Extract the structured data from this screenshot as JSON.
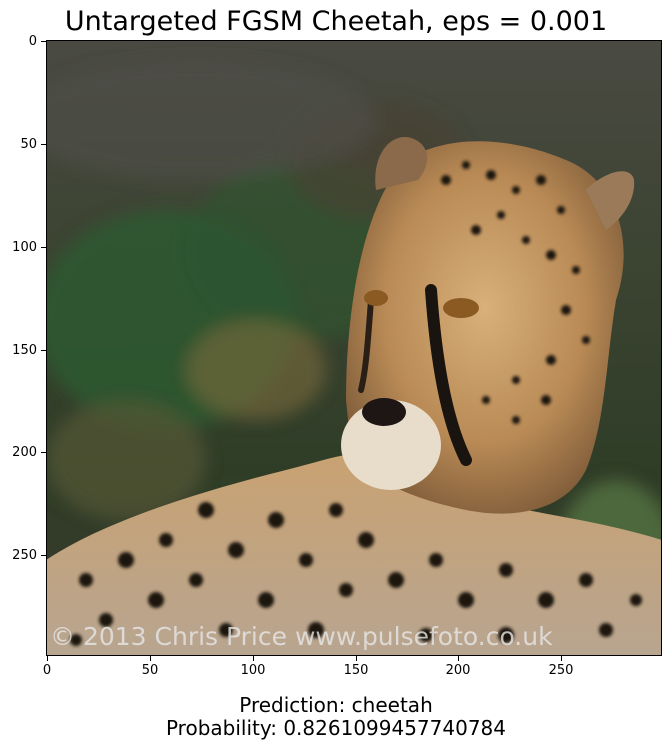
{
  "title": "Untargeted FGSM Cheetah, eps = 0.001",
  "y_ticks": [
    "0",
    "50",
    "100",
    "150",
    "200",
    "250"
  ],
  "x_ticks": [
    "0",
    "50",
    "100",
    "150",
    "200",
    "250"
  ],
  "watermark": "© 2013 Chris Price www.pulsefoto.co.uk",
  "prediction": "Prediction: cheetah",
  "probability": "Probability: 0.8261099457740784",
  "colors": {
    "background_top": "#44483a",
    "foliage": "#2c4a2c",
    "cheetah_fur": "#c69a63",
    "spots": "#1b1510"
  }
}
